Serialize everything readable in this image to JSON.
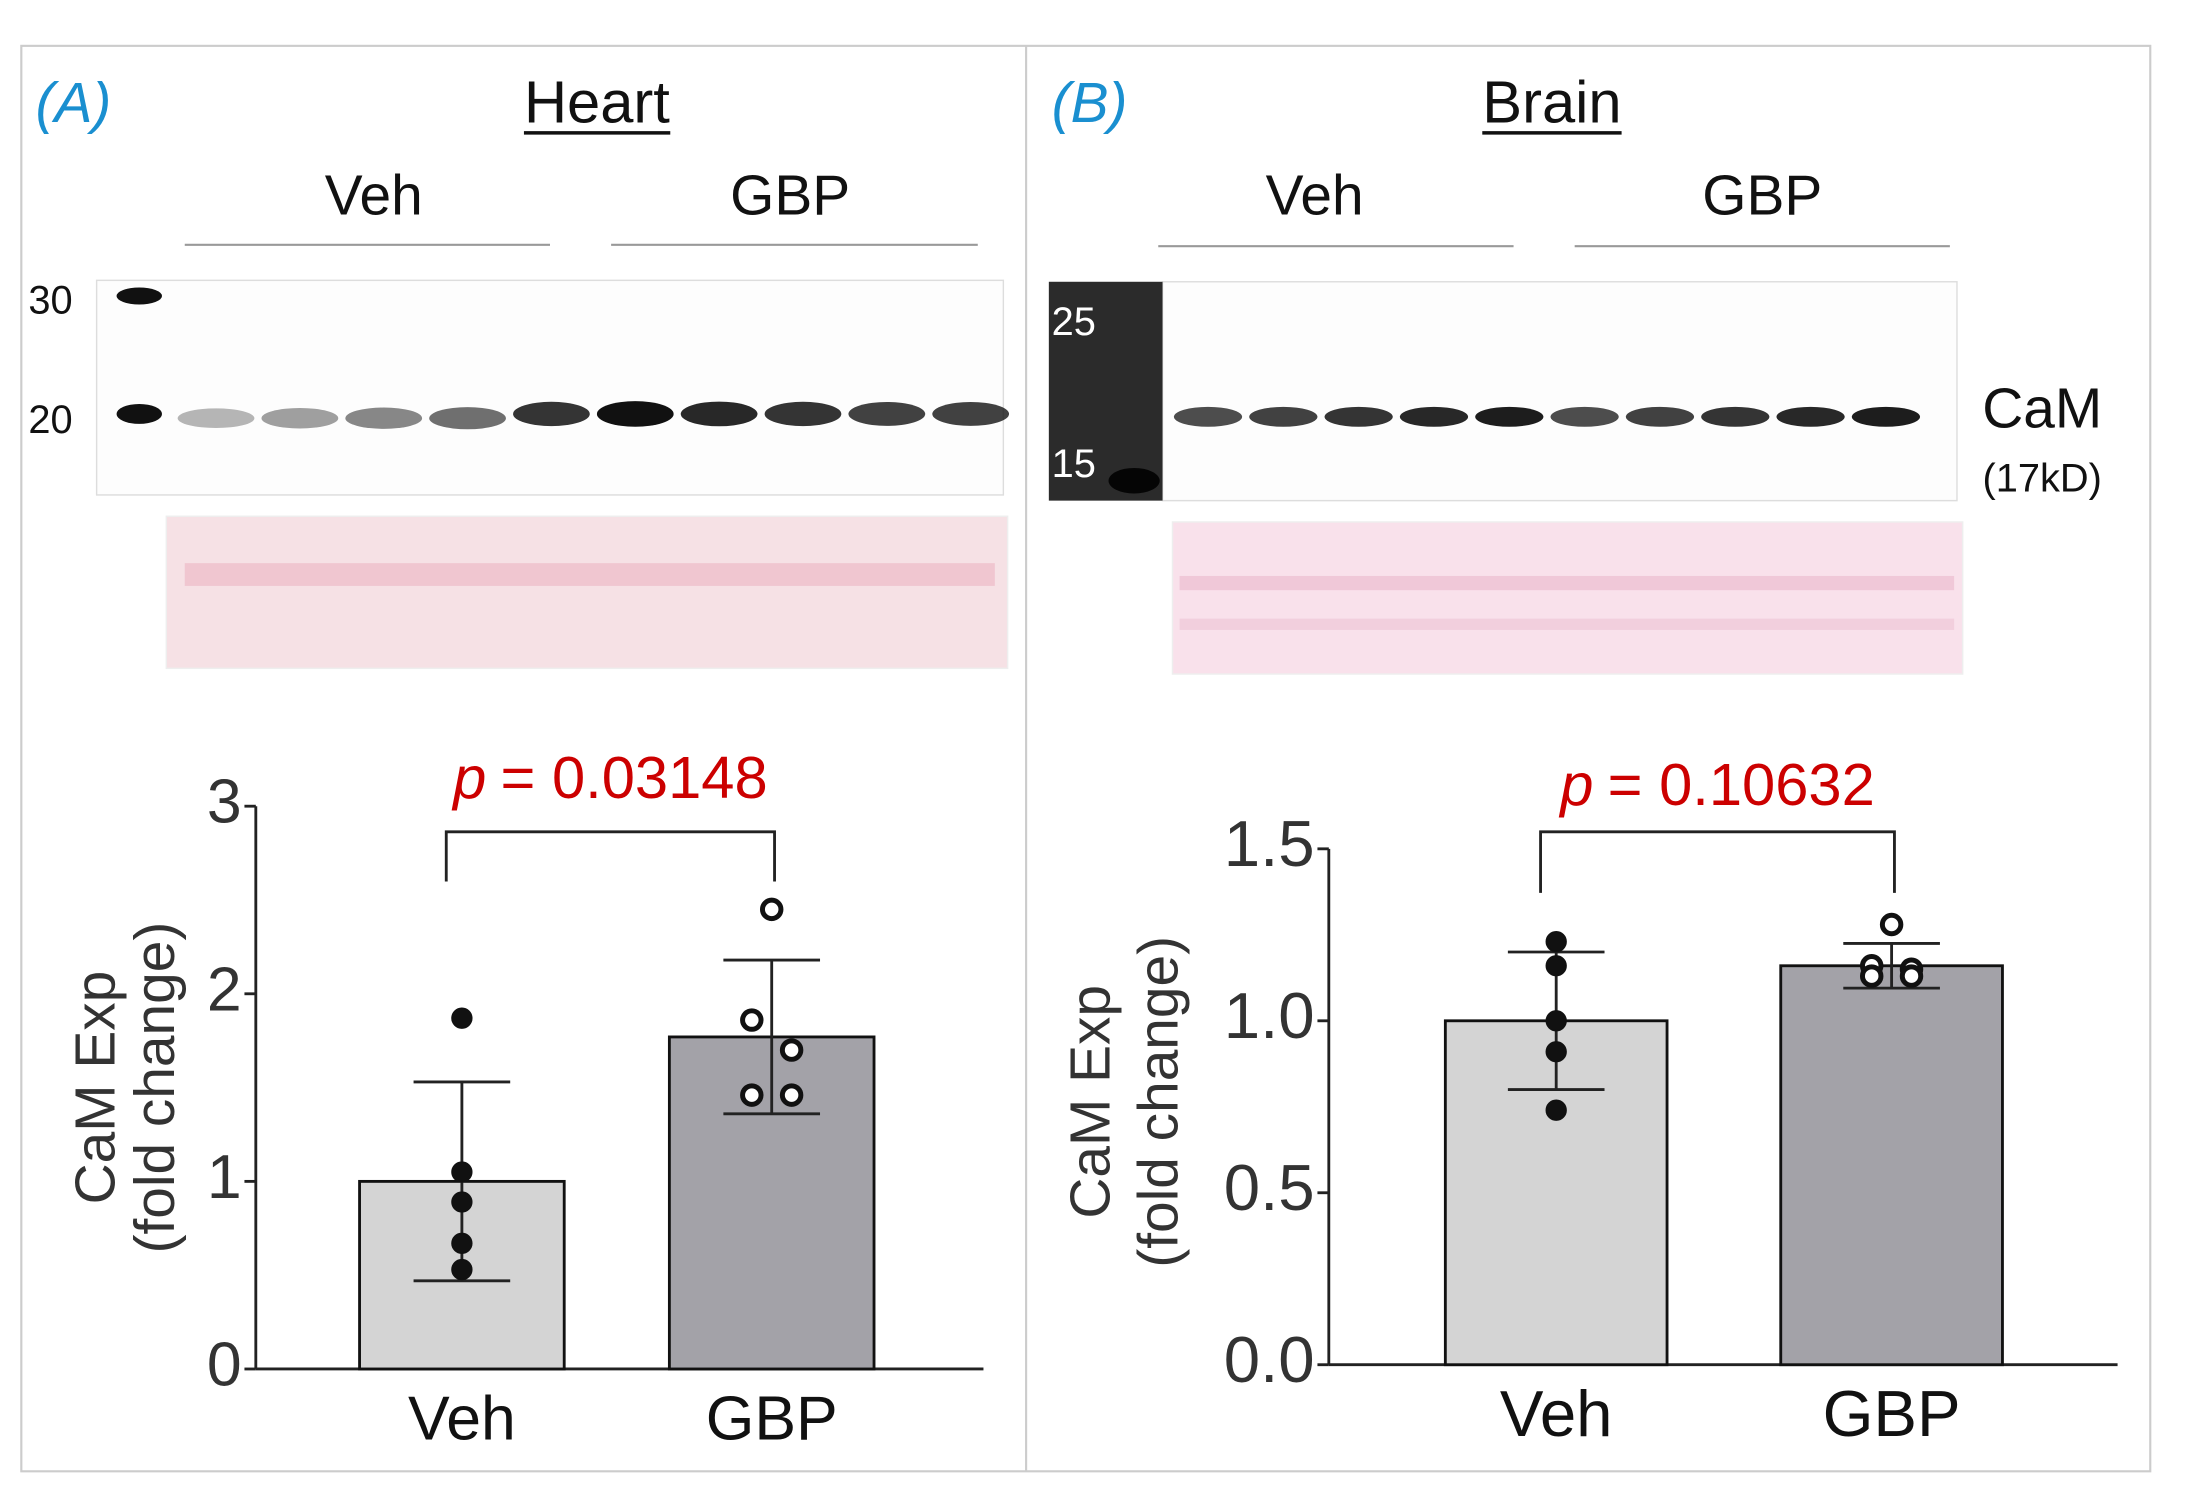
{
  "panels": [
    {
      "label": "(A)",
      "title": "Heart",
      "groups": [
        "Veh",
        "GBP"
      ],
      "markers": [
        "30",
        "20"
      ]
    },
    {
      "label": "(B)",
      "title": "Brain",
      "groups": [
        "Veh",
        "GBP"
      ],
      "markers": [
        "25",
        "15"
      ],
      "protein": "CaM",
      "protein_size": "(17kD)"
    }
  ],
  "chart_data": [
    {
      "type": "bar",
      "y_label": [
        "CaM  Exp",
        "(fold change)"
      ],
      "categories": [
        "Veh",
        "GBP"
      ],
      "values": [
        1.0,
        1.77
      ],
      "errors": [
        0.53,
        0.41
      ],
      "points": [
        [
          1.87,
          1.05,
          0.89,
          0.67,
          0.53
        ],
        [
          2.45,
          1.86,
          1.7,
          1.46,
          1.46
        ]
      ],
      "colors": [
        "#d4d4d4",
        "#a3a2a8"
      ],
      "point_styles": [
        "filled",
        "open"
      ],
      "annotation": {
        "symbol": "p",
        "text": "= 0.03148"
      },
      "ylim": [
        0,
        3
      ],
      "yticks": [
        0,
        1,
        2,
        3
      ]
    },
    {
      "type": "bar",
      "y_label": [
        "CaM  Exp",
        "(fold change)"
      ],
      "categories": [
        "Veh",
        "GBP"
      ],
      "values": [
        1.0,
        1.16
      ],
      "errors": [
        0.2,
        0.065
      ],
      "points": [
        [
          1.23,
          1.16,
          1.0,
          0.91,
          0.74
        ],
        [
          1.28,
          1.16,
          1.15,
          1.13,
          1.13
        ]
      ],
      "colors": [
        "#d4d4d4",
        "#a3a2a8"
      ],
      "point_styles": [
        "filled",
        "open"
      ],
      "annotation": {
        "symbol": "p",
        "text": "= 0.10632"
      },
      "ylim": [
        0,
        1.5
      ],
      "yticks": [
        {
          "value": 0,
          "label": "0.0"
        },
        {
          "value": 0.5,
          "label": "0.5"
        },
        {
          "value": 1,
          "label": "1.0"
        },
        {
          "value": 1.5,
          "label": "1.5"
        }
      ]
    }
  ]
}
